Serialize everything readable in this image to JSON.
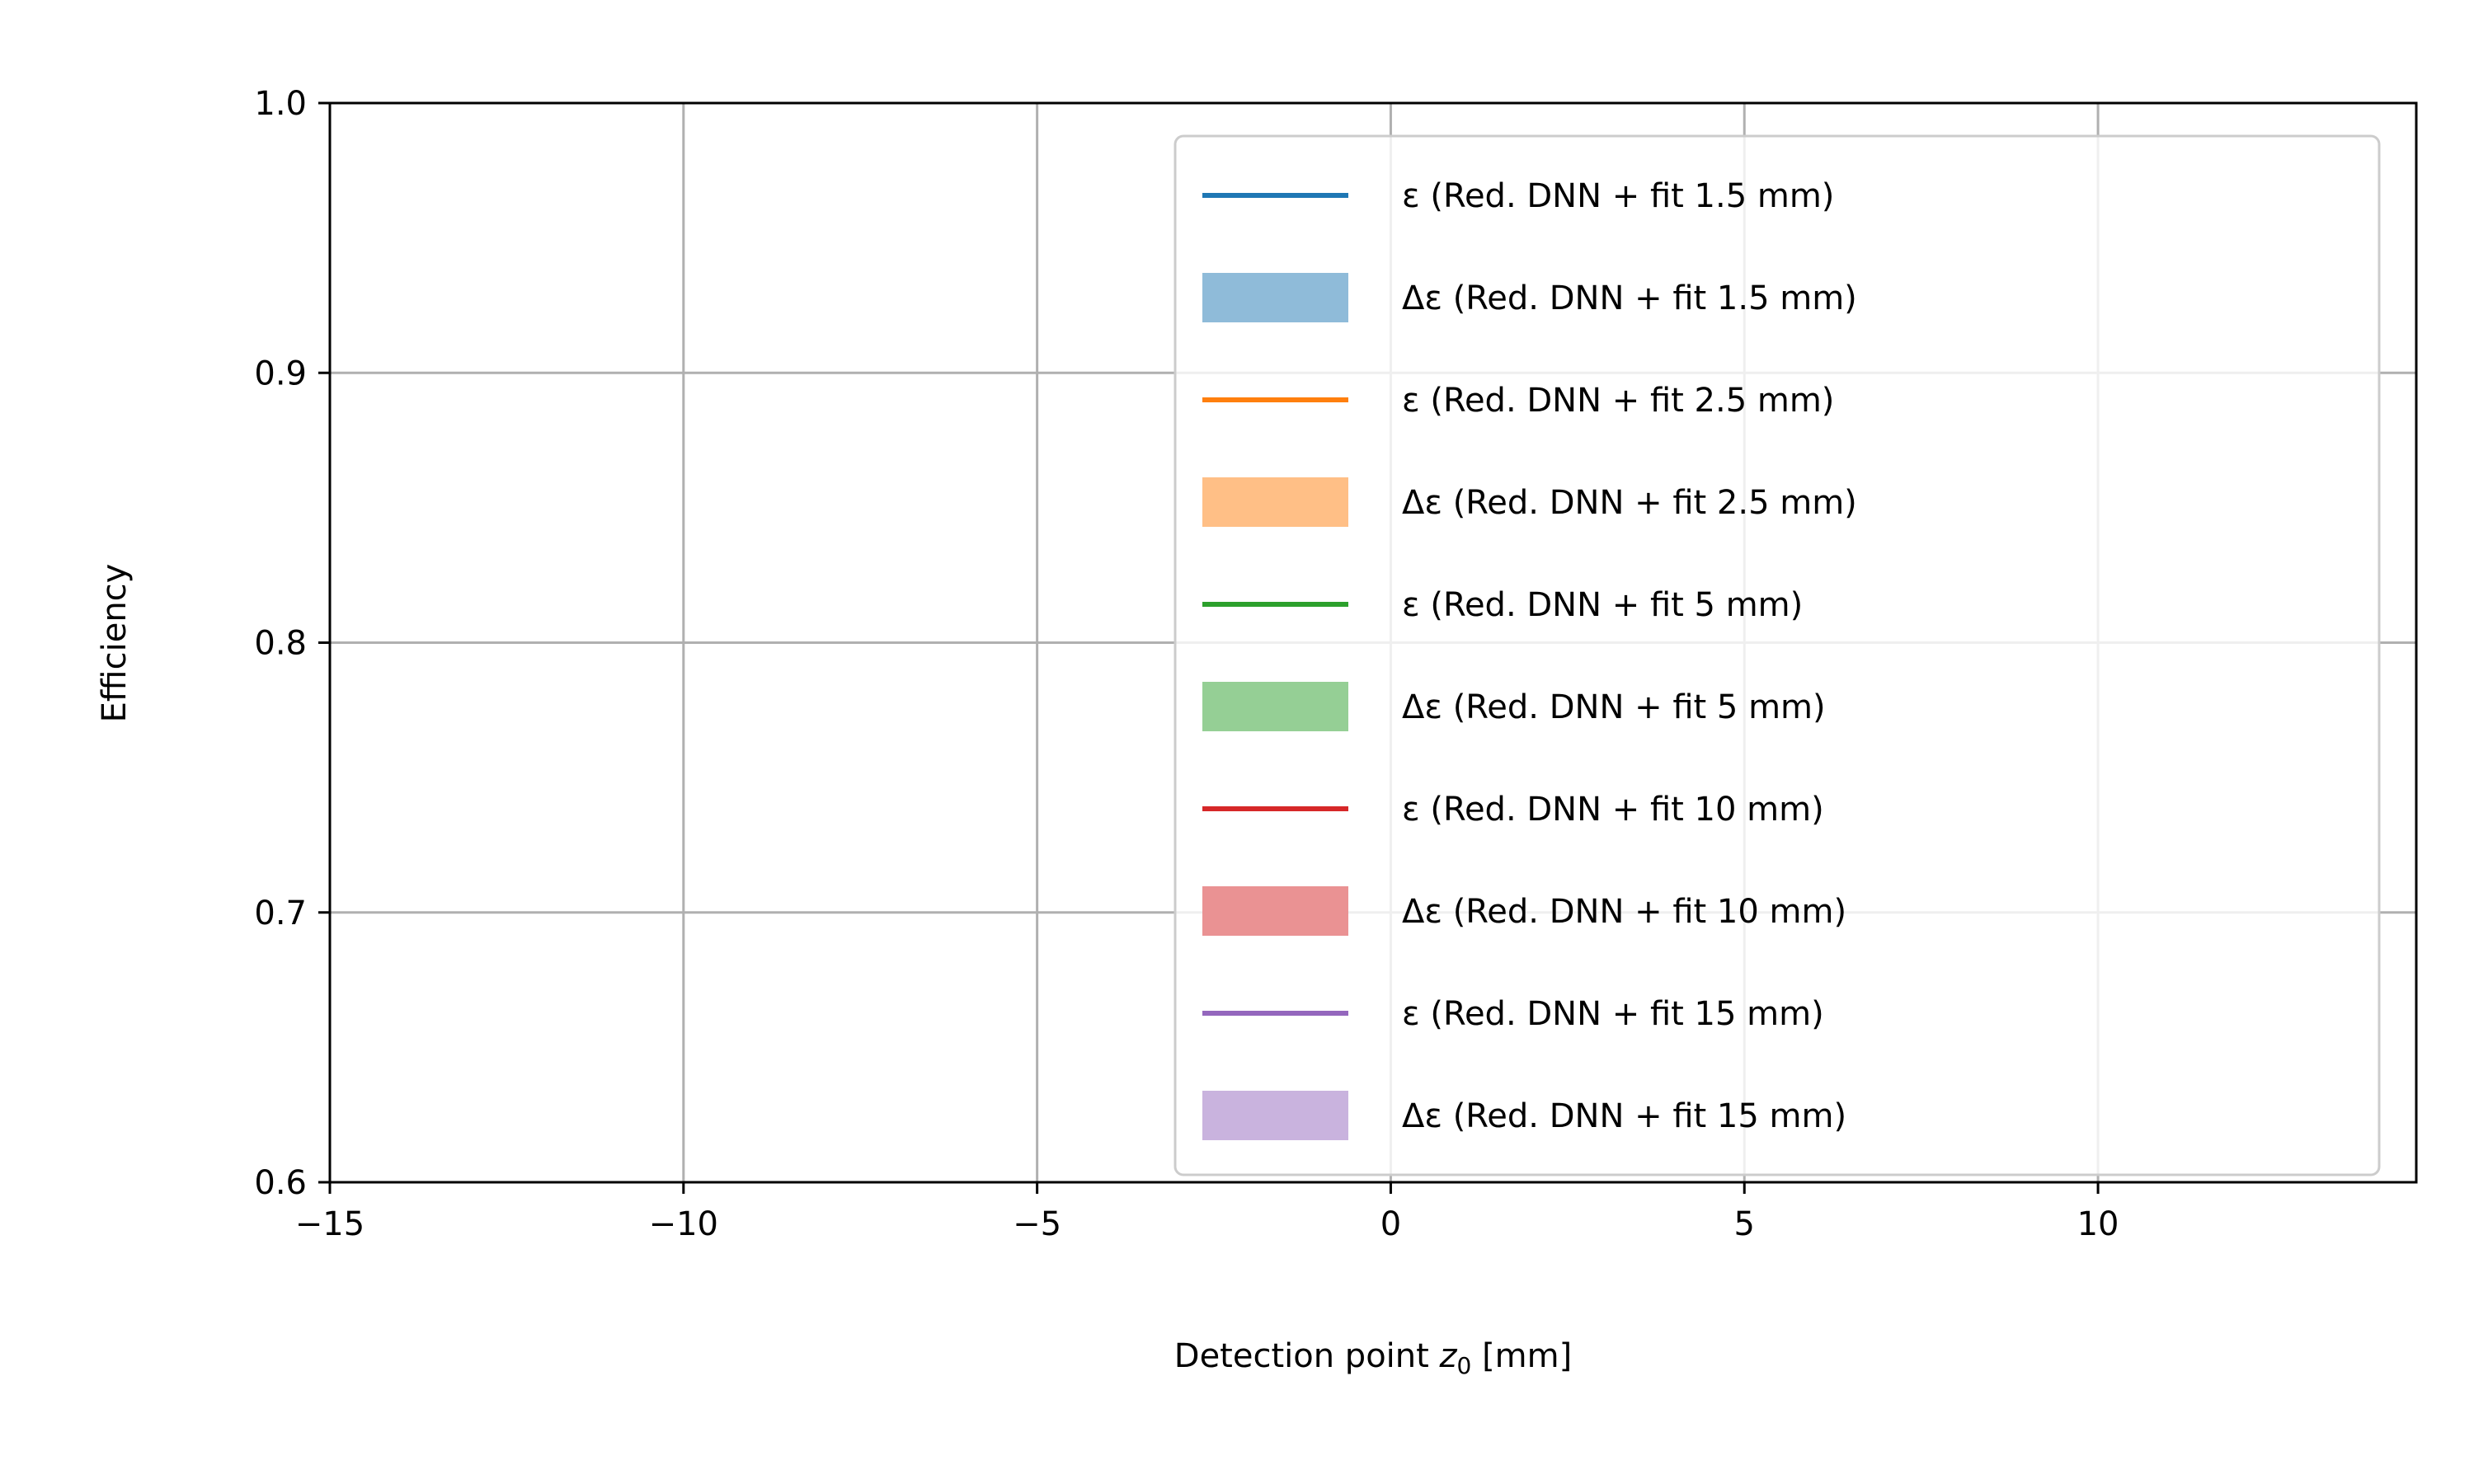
{
  "chart_data": {
    "type": "line",
    "title": "",
    "xlabel_parts": [
      "Detection point ",
      "z",
      "0",
      " [mm]"
    ],
    "ylabel": "Efficiency",
    "xlim": [
      -15,
      14.5
    ],
    "ylim": [
      0.6,
      1.0
    ],
    "xticks": [
      -15,
      -10,
      -5,
      0,
      5,
      10
    ],
    "xtick_labels": [
      "−15",
      "−10",
      "−5",
      "0",
      "5",
      "10"
    ],
    "yticks": [
      0.6,
      0.7,
      0.8,
      0.9,
      1.0
    ],
    "ytick_labels": [
      "0.6",
      "0.7",
      "0.8",
      "0.9",
      "1.0"
    ],
    "grid": true,
    "legend_position": "upper-right",
    "series": [
      {
        "name": "ε (Red. DNN + fit 1.5 mm)",
        "kind": "line",
        "color": "#1f77b4",
        "x": [],
        "y": []
      },
      {
        "name": "Δε (Red. DNN + fit 1.5 mm)",
        "kind": "band",
        "color": "#8fbbd9",
        "x": [],
        "y_low": [],
        "y_high": []
      },
      {
        "name": "ε (Red. DNN + fit 2.5 mm)",
        "kind": "line",
        "color": "#ff7f0e",
        "x": [],
        "y": []
      },
      {
        "name": "Δε (Red. DNN + fit 2.5 mm)",
        "kind": "band",
        "color": "#ffbf86",
        "x": [],
        "y_low": [],
        "y_high": []
      },
      {
        "name": "ε (Red. DNN + fit 5 mm)",
        "kind": "line",
        "color": "#2ca02c",
        "x": [],
        "y": []
      },
      {
        "name": "Δε (Red. DNN + fit 5 mm)",
        "kind": "band",
        "color": "#95cf95",
        "x": [],
        "y_low": [],
        "y_high": []
      },
      {
        "name": "ε (Red. DNN + fit 10 mm)",
        "kind": "line",
        "color": "#d62728",
        "x": [],
        "y": []
      },
      {
        "name": "Δε (Red. DNN + fit 10 mm)",
        "kind": "band",
        "color": "#ea9293",
        "x": [],
        "y_low": [],
        "y_high": []
      },
      {
        "name": "ε (Red. DNN + fit 15 mm)",
        "kind": "line",
        "color": "#9467bd",
        "x": [],
        "y": []
      },
      {
        "name": "Δε (Red. DNN + fit 15 mm)",
        "kind": "band",
        "color": "#c9b3de",
        "x": [],
        "y_low": [],
        "y_high": []
      }
    ]
  }
}
